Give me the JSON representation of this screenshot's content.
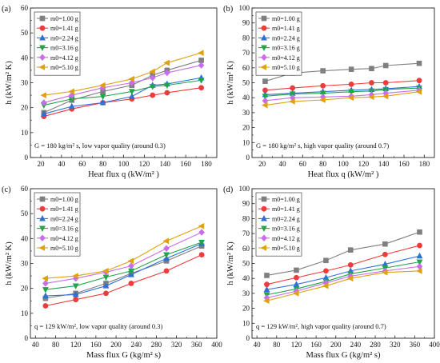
{
  "figure": {
    "palette": {
      "1.00": "#7f7f7f",
      "1.41": "#ee3b3b",
      "2.24": "#2f6fd8",
      "3.16": "#1fa64a",
      "4.12": "#c76ee8",
      "5.10": "#e0a010"
    }
  },
  "chart_data": [
    {
      "panel": "(a)",
      "type": "line",
      "xlabel": "Heat flux q (kW/m² )",
      "ylabel": "h (kW/m² K)",
      "xlim": [
        10,
        190
      ],
      "ylim": [
        0,
        60
      ],
      "xticks": [
        20,
        40,
        60,
        80,
        100,
        120,
        140,
        160,
        180
      ],
      "yticks": [
        0,
        10,
        20,
        30,
        40,
        50,
        60
      ],
      "note": "G = 180 kg/m² s, low vapor quality (around 0.3)",
      "legend_position": "top-left",
      "x": [
        23,
        50,
        80,
        108,
        128,
        142,
        175
      ],
      "series": [
        {
          "name": "m0=1.00 g",
          "marker": "square",
          "values": [
            18,
            23,
            26.5,
            29,
            33,
            35,
            39
          ]
        },
        {
          "name": "m0=1.41 g",
          "marker": "circle",
          "values": [
            16.5,
            19.5,
            22,
            23.5,
            25,
            26,
            28
          ]
        },
        {
          "name": "m0=2.24 g",
          "marker": "triangle-up",
          "values": [
            17.5,
            20.5,
            22,
            24.5,
            29,
            29.5,
            32
          ]
        },
        {
          "name": "m0=3.16 g",
          "marker": "triangle-down",
          "values": [
            21,
            23.5,
            24.5,
            26.5,
            28.5,
            29,
            31
          ]
        },
        {
          "name": "m0=4.12 g",
          "marker": "diamond",
          "values": [
            22,
            25,
            28,
            30,
            32,
            34,
            37
          ]
        },
        {
          "name": "m0=5.10 g",
          "marker": "triangle-left",
          "values": [
            25,
            26.5,
            29,
            31.5,
            34.5,
            38,
            42
          ]
        }
      ]
    },
    {
      "panel": "(b)",
      "type": "line",
      "xlabel": "Heat flux q (kW/m² )",
      "ylabel": "h (kW/m² K)",
      "xlim": [
        10,
        190
      ],
      "ylim": [
        0,
        100
      ],
      "xticks": [
        20,
        40,
        60,
        80,
        100,
        120,
        140,
        160,
        180
      ],
      "yticks": [
        0,
        10,
        20,
        30,
        40,
        50,
        60,
        70,
        80,
        90,
        100
      ],
      "note": "G = 180 kg/m² s, high vapor quality (around 0.7)",
      "legend_position": "top-left",
      "x": [
        23,
        50,
        80,
        108,
        128,
        142,
        175
      ],
      "series": [
        {
          "name": "m0=1.00 g",
          "marker": "square",
          "values": [
            51,
            56.5,
            58,
            59,
            59.5,
            61.5,
            63
          ]
        },
        {
          "name": "m0=1.41 g",
          "marker": "circle",
          "values": [
            45,
            46.5,
            48,
            49,
            50,
            50,
            51.5
          ]
        },
        {
          "name": "m0=2.24 g",
          "marker": "triangle-up",
          "values": [
            42,
            43,
            44,
            45,
            45.5,
            46,
            47.5
          ]
        },
        {
          "name": "m0=3.16 g",
          "marker": "triangle-down",
          "values": [
            41,
            42.5,
            43,
            44,
            44.5,
            45.5,
            46.5
          ]
        },
        {
          "name": "m0=4.12 g",
          "marker": "diamond",
          "values": [
            38,
            40,
            40.5,
            41,
            42,
            43,
            45
          ]
        },
        {
          "name": "m0=5.10 g",
          "marker": "triangle-left",
          "values": [
            35,
            37.5,
            38.5,
            40,
            40.5,
            41,
            44
          ]
        }
      ]
    },
    {
      "panel": "(c)",
      "type": "line",
      "xlabel": "Mass flux G (kg/m² s)",
      "ylabel": "h (kW/m² K)",
      "xlim": [
        30,
        400
      ],
      "ylim": [
        0,
        60
      ],
      "xticks": [
        40,
        80,
        120,
        160,
        200,
        240,
        280,
        320,
        360,
        400
      ],
      "yticks": [
        0,
        10,
        20,
        30,
        40,
        50,
        60
      ],
      "note": "q = 129 kW/m², low vapor quality (around 0.3)",
      "legend_position": "top-left",
      "x": [
        60,
        120,
        180,
        230,
        300,
        370
      ],
      "series": [
        {
          "name": "m0=1.00 g",
          "marker": "square",
          "values": [
            16,
            18,
            22,
            26,
            31,
            37
          ]
        },
        {
          "name": "m0=1.41 g",
          "marker": "circle",
          "values": [
            13,
            15.5,
            18,
            22,
            27,
            33.5
          ]
        },
        {
          "name": "m0=2.24 g",
          "marker": "triangle-up",
          "values": [
            17,
            17.5,
            21,
            25.5,
            32,
            38
          ]
        },
        {
          "name": "m0=3.16 g",
          "marker": "triangle-down",
          "values": [
            19.5,
            21,
            24.5,
            27,
            33.5,
            38.5
          ]
        },
        {
          "name": "m0=4.12 g",
          "marker": "diamond",
          "values": [
            22,
            24,
            26.5,
            29,
            36,
            42.5
          ]
        },
        {
          "name": "m0=5.10 g",
          "marker": "triangle-left",
          "values": [
            24,
            25,
            27,
            31,
            39,
            45
          ]
        }
      ]
    },
    {
      "panel": "(d)",
      "type": "line",
      "xlabel": "Mass flux G (kg/m² s)",
      "ylabel": "h (kW/m² K)",
      "xlim": [
        30,
        400
      ],
      "ylim": [
        0,
        100
      ],
      "xticks": [
        40,
        80,
        120,
        160,
        200,
        240,
        280,
        320,
        360,
        400
      ],
      "yticks": [
        0,
        10,
        20,
        30,
        40,
        50,
        60,
        70,
        80,
        90,
        100
      ],
      "note": "q = 129 kW/m², high vapor quality (around 0.7)",
      "legend_position": "top-left",
      "x": [
        60,
        120,
        180,
        230,
        300,
        370
      ],
      "series": [
        {
          "name": "m0=1.00 g",
          "marker": "square",
          "values": [
            42,
            45.5,
            52,
            59,
            63,
            71
          ]
        },
        {
          "name": "m0=1.41 g",
          "marker": "circle",
          "values": [
            36,
            40.5,
            45,
            49,
            56,
            62
          ]
        },
        {
          "name": "m0=2.24 g",
          "marker": "triangle-up",
          "values": [
            32.5,
            36,
            40.5,
            45,
            49.5,
            55
          ]
        },
        {
          "name": "m0=3.16 g",
          "marker": "triangle-down",
          "values": [
            29,
            33,
            38,
            43,
            47,
            51
          ]
        },
        {
          "name": "m0=4.12 g",
          "marker": "diamond",
          "values": [
            27,
            31.5,
            37,
            41.5,
            45,
            48
          ]
        },
        {
          "name": "m0=5.10 g",
          "marker": "triangle-left",
          "values": [
            25,
            30,
            35,
            40,
            44,
            45
          ]
        }
      ]
    }
  ]
}
